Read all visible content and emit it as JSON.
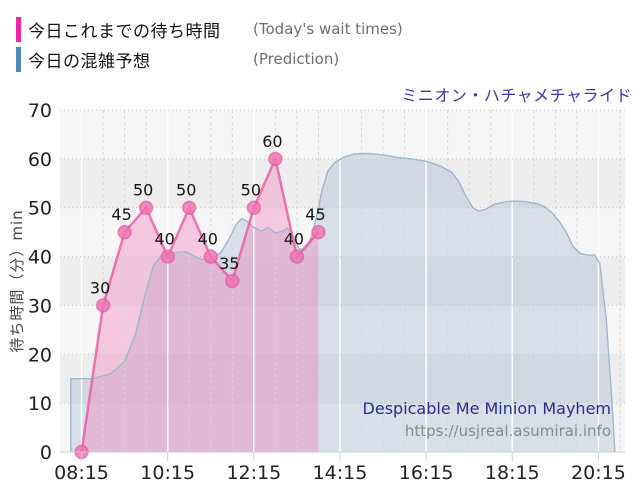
{
  "title": "ミニオン・ハチャメチャライド",
  "legend": {
    "today": {
      "label_jp": "今日これまでの待ち時間",
      "label_en": "(Today's wait times)",
      "color": "#f0249e"
    },
    "prediction": {
      "label_jp": "今日の混雑予想",
      "label_en": "(Prediction)",
      "color": "#4e87b5"
    }
  },
  "watermark": {
    "name": "Despicable Me Minion Mayhem",
    "url": "https://usjreal.asumirai.info"
  },
  "chart_data": {
    "type": "line",
    "title": "ミニオン・ハチャメチャライド",
    "y_axis": {
      "label": "待ち時間（分）min",
      "min": 0,
      "max": 70,
      "step": 10
    },
    "x_axis": {
      "ticks": [
        "08:15",
        "10:15",
        "12:15",
        "14:15",
        "16:15",
        "18:15",
        "20:15"
      ],
      "domain": [
        "07:45",
        "20:52"
      ],
      "minor_grid_minutes": 30
    },
    "series": [
      {
        "name": "今日の混雑予想",
        "kind": "area",
        "line_color": "#9db7d0",
        "fill_color": "rgba(141,170,199,0.30)",
        "show_point_labels": false,
        "points": [
          [
            "08:00",
            15
          ],
          [
            "08:30",
            15
          ],
          [
            "08:55",
            16
          ],
          [
            "09:15",
            18.5
          ],
          [
            "09:30",
            24
          ],
          [
            "09:45",
            33
          ],
          [
            "09:55",
            38
          ],
          [
            "10:05",
            40
          ],
          [
            "10:20",
            40.8
          ],
          [
            "10:40",
            41
          ],
          [
            "11:00",
            39.5
          ],
          [
            "11:15",
            39.2
          ],
          [
            "11:30",
            41
          ],
          [
            "11:40",
            43.5
          ],
          [
            "11:50",
            46.5
          ],
          [
            "11:58",
            47.8
          ],
          [
            "12:06",
            47.2
          ],
          [
            "12:15",
            46
          ],
          [
            "12:25",
            45.2
          ],
          [
            "12:35",
            46
          ],
          [
            "12:45",
            44.8
          ],
          [
            "12:55",
            45.2
          ],
          [
            "13:02",
            45.8
          ],
          [
            "13:10",
            44
          ],
          [
            "13:18",
            41.6
          ],
          [
            "13:27",
            41.3
          ],
          [
            "13:35",
            44
          ],
          [
            "13:43",
            48.5
          ],
          [
            "13:50",
            53.5
          ],
          [
            "13:58",
            57.5
          ],
          [
            "14:08",
            59.3
          ],
          [
            "14:20",
            60.3
          ],
          [
            "14:35",
            61
          ],
          [
            "14:55",
            61.1
          ],
          [
            "15:15",
            60.8
          ],
          [
            "15:35",
            60.3
          ],
          [
            "15:55",
            60
          ],
          [
            "16:15",
            59.5
          ],
          [
            "16:35",
            58.5
          ],
          [
            "16:50",
            57.3
          ],
          [
            "17:00",
            55.5
          ],
          [
            "17:10",
            52.5
          ],
          [
            "17:20",
            50
          ],
          [
            "17:28",
            49.3
          ],
          [
            "17:38",
            49.7
          ],
          [
            "17:50",
            50.7
          ],
          [
            "18:05",
            51.2
          ],
          [
            "18:20",
            51.4
          ],
          [
            "18:35",
            51.2
          ],
          [
            "18:50",
            50.8
          ],
          [
            "19:00",
            50.2
          ],
          [
            "19:10",
            49
          ],
          [
            "19:20",
            47.3
          ],
          [
            "19:30",
            45
          ],
          [
            "19:40",
            42
          ],
          [
            "19:50",
            40.6
          ],
          [
            "20:00",
            40.3
          ],
          [
            "20:10",
            40.3
          ],
          [
            "20:17",
            38.5
          ],
          [
            "20:26",
            27
          ],
          [
            "20:33",
            12
          ],
          [
            "20:38",
            0
          ]
        ]
      },
      {
        "name": "今日これまでの待ち時間",
        "kind": "line-area-markers",
        "line_color": "rgba(233,79,159,0.75)",
        "fill_color": "rgba(244,126,190,0.38)",
        "marker_fill": "rgba(236,116,180,0.85)",
        "marker_stroke": "rgba(228,64,148,0.5)",
        "show_point_labels": true,
        "skip_first_label": true,
        "points": [
          [
            "08:15",
            0
          ],
          [
            "08:45",
            30
          ],
          [
            "09:15",
            45
          ],
          [
            "09:45",
            50
          ],
          [
            "10:15",
            40
          ],
          [
            "10:45",
            50
          ],
          [
            "11:15",
            40
          ],
          [
            "11:45",
            35
          ],
          [
            "12:15",
            50
          ],
          [
            "12:45",
            60
          ],
          [
            "13:15",
            40
          ],
          [
            "13:45",
            45
          ]
        ]
      }
    ]
  }
}
